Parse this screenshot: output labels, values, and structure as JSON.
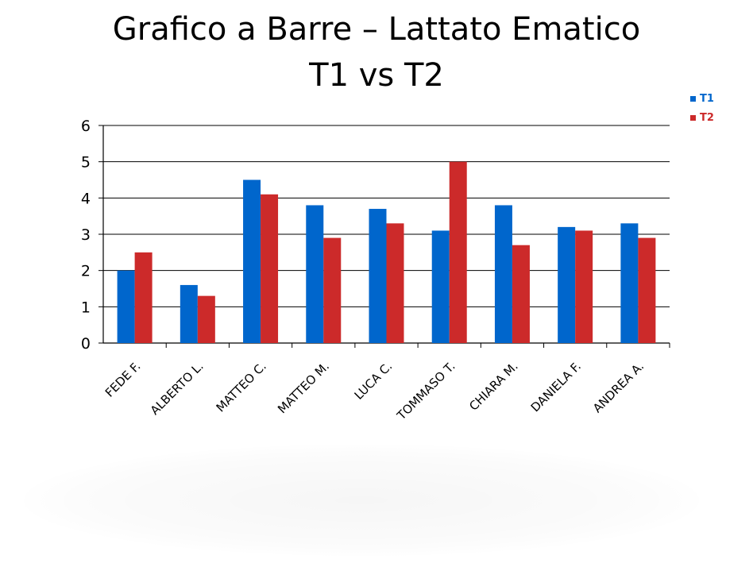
{
  "slide": {
    "title_line1": "Grafico a Barre – Lattato Ematico",
    "title_line2": "T1 vs T2"
  },
  "chart_data": {
    "type": "bar",
    "categories": [
      "FEDE F.",
      "ALBERTO L.",
      "MATTEO C.",
      "MATTEO M.",
      "LUCA C.",
      "TOMMASO T.",
      "CHIARA M.",
      "DANIELA F.",
      "ANDREA A."
    ],
    "series": [
      {
        "name": "T1",
        "color": "#0066cc",
        "values": [
          2.0,
          1.6,
          4.5,
          3.8,
          3.7,
          3.1,
          3.8,
          3.2,
          3.3
        ]
      },
      {
        "name": "T2",
        "color": "#cc2a2a",
        "values": [
          2.5,
          1.3,
          4.1,
          2.9,
          3.3,
          5.0,
          2.7,
          3.1,
          2.9
        ]
      }
    ],
    "ylim": [
      0,
      6
    ],
    "yticks": [
      "0",
      "1",
      "2",
      "3",
      "4",
      "5",
      "6"
    ],
    "grid": true,
    "legend_position": "top-right",
    "xlabel": "",
    "ylabel": ""
  }
}
